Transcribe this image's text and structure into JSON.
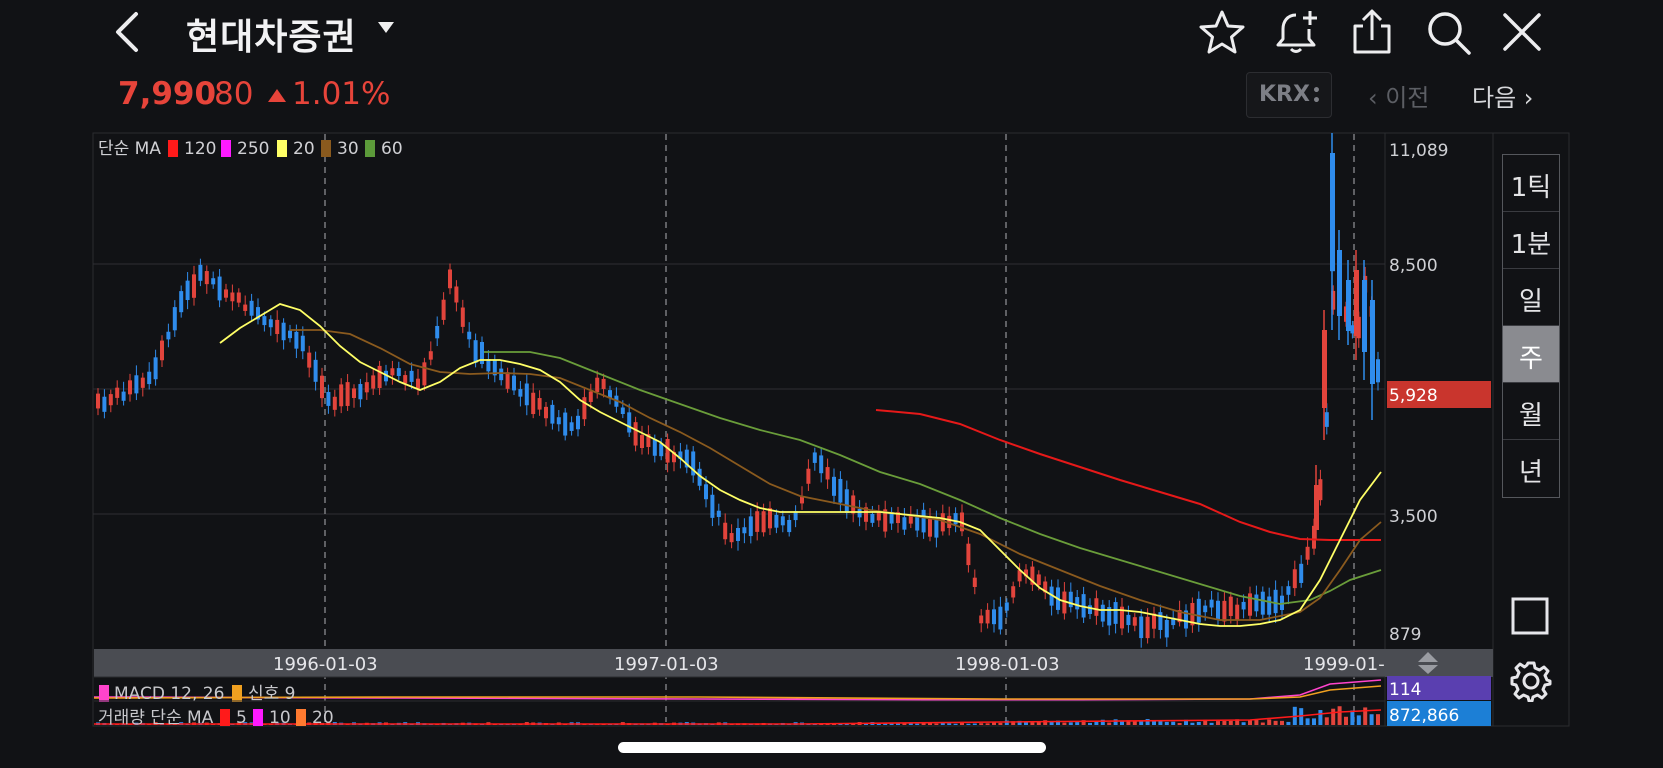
{
  "header": {
    "title": "현대차증권",
    "back_icon": "chevron-left-icon",
    "icons": [
      "star-icon",
      "bell-plus-icon",
      "share-icon",
      "search-icon",
      "close-icon"
    ]
  },
  "quote": {
    "price": "7,990",
    "change": "80",
    "change_pct": "1.01%",
    "direction": "up",
    "color": "#e7443a"
  },
  "exchange": {
    "label": "KRX"
  },
  "nav": {
    "prev": "‹ 이전",
    "next": "다음 ›"
  },
  "price_chart": {
    "legend_prefix": "단순 MA",
    "ma_legend": [
      {
        "label": "120",
        "color": "#ff1a1a"
      },
      {
        "label": "250",
        "color": "#ff1aff"
      },
      {
        "label": "20",
        "color": "#ffff66"
      },
      {
        "label": "30",
        "color": "#8a5a1e"
      },
      {
        "label": "60",
        "color": "#5c9a3a"
      }
    ],
    "y_ticks": [
      "11,089",
      "8,500",
      "3,500",
      "879"
    ],
    "last_price_label": "5,928",
    "x_ticks": [
      "1996-01-03",
      "1997-01-03",
      "1998-01-03",
      "1999-01-"
    ]
  },
  "macd": {
    "legend": "MACD 12, 26",
    "signal_label": "신호 9",
    "value": "114",
    "colors": {
      "macd": "#ff44cc",
      "signal": "#f0a020"
    }
  },
  "volume": {
    "legend": "거래량 단순 MA",
    "ma_legend": [
      {
        "label": "5",
        "color": "#ff1a1a"
      },
      {
        "label": "10",
        "color": "#ff1aff"
      },
      {
        "label": "20",
        "color": "#ff7a30"
      }
    ],
    "value": "872,866"
  },
  "periods": [
    {
      "label": "1틱",
      "active": false
    },
    {
      "label": "1분",
      "active": false
    },
    {
      "label": "일",
      "active": false
    },
    {
      "label": "주",
      "active": true
    },
    {
      "label": "월",
      "active": false
    },
    {
      "label": "년",
      "active": false
    }
  ],
  "side_icons": [
    "crop-square-icon",
    "settings-gear-icon"
  ],
  "chart_data": {
    "type": "candlestick",
    "interval": "weekly",
    "x": [
      "1995-09",
      "1995-12",
      "1996-03",
      "1996-06",
      "1996-09",
      "1996-12",
      "1997-03",
      "1997-06",
      "1997-09",
      "1997-12",
      "1998-03",
      "1998-06",
      "1998-09",
      "1998-12",
      "1999-01",
      "1999-02"
    ],
    "close": [
      5900,
      7900,
      6400,
      7400,
      5600,
      4700,
      3400,
      4100,
      3200,
      1300,
      1100,
      850,
      1050,
      2700,
      8500,
      5928
    ],
    "series": [
      {
        "name": "20",
        "values": [
          null,
          6900,
          6500,
          6200,
          6000,
          5000,
          4000,
          3900,
          3500,
          2300,
          1300,
          1000,
          1050,
          1700,
          4400,
          4900
        ]
      },
      {
        "name": "30",
        "values": [
          null,
          null,
          6700,
          6200,
          6100,
          5300,
          4300,
          3900,
          3600,
          2900,
          2000,
          1300,
          1100,
          1500,
          3500,
          3700
        ]
      },
      {
        "name": "60",
        "values": [
          null,
          null,
          null,
          6100,
          6100,
          5700,
          5000,
          4500,
          4000,
          3200,
          2500,
          1900,
          1600,
          1500,
          2500,
          2600
        ]
      },
      {
        "name": "120",
        "values": [
          null,
          null,
          null,
          null,
          null,
          null,
          null,
          5100,
          4800,
          4300,
          3700,
          3200,
          2800,
          2700,
          2700,
          2700
        ]
      }
    ],
    "yticks": [
      879,
      3500,
      8500,
      11089
    ],
    "ylim": [
      879,
      11089
    ],
    "last_price": 5928,
    "macd_value": 114,
    "volume_value": 872866,
    "grid": true
  }
}
